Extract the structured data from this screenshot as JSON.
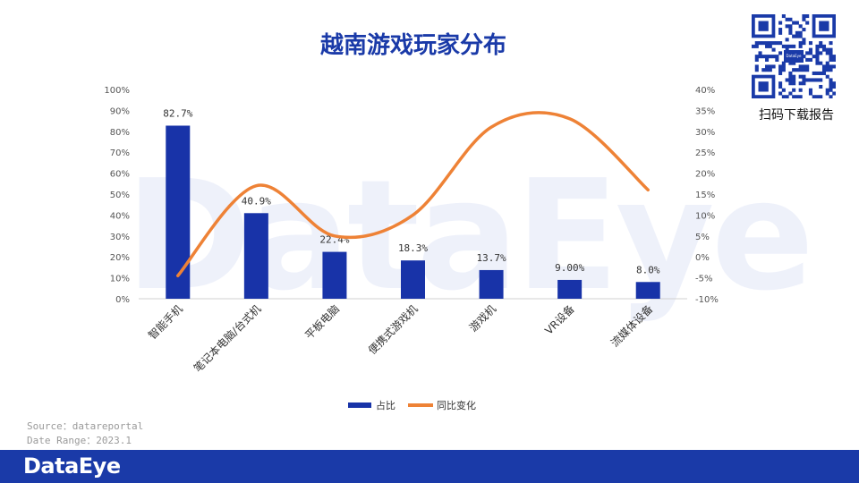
{
  "title": "越南游戏玩家分布",
  "watermark": "DataEye",
  "qr": {
    "caption": "扫码下载报告",
    "logo_text": "DataEye"
  },
  "source": {
    "line1": "Source：datareportal",
    "line2": "Date Range：2023.1"
  },
  "footer": {
    "logo": "DataEye"
  },
  "colors": {
    "bar": "#1833a8",
    "line": "#ee8236",
    "title": "#1a3aa8",
    "footer": "#1a3aa8"
  },
  "chart_data": {
    "type": "bar",
    "categories": [
      "智能手机",
      "笔记本电脑/台式机",
      "平板电脑",
      "便携式游戏机",
      "游戏机",
      "VR设备",
      "流媒体设备"
    ],
    "series": [
      {
        "name": "占比",
        "type": "bar",
        "axis": "left",
        "values": [
          82.7,
          40.9,
          22.4,
          18.3,
          13.7,
          9.0,
          8.0
        ],
        "labels": [
          "82.7%",
          "40.9%",
          "22.4%",
          "18.3%",
          "13.7%",
          "9.00%",
          "8.0%"
        ]
      },
      {
        "name": "同比变化",
        "type": "line",
        "axis": "right",
        "smooth": true,
        "values": [
          -4.5,
          17,
          5,
          10,
          31,
          33,
          16
        ]
      }
    ],
    "y_left": {
      "min": 0,
      "max": 100,
      "step": 10,
      "format": "percent",
      "ticks": [
        "0%",
        "10%",
        "20%",
        "30%",
        "40%",
        "50%",
        "60%",
        "70%",
        "80%",
        "90%",
        "100%"
      ]
    },
    "y_right": {
      "min": -10,
      "max": 40,
      "step": 5,
      "format": "percent",
      "ticks": [
        "-10%",
        "-5%",
        "0%",
        "5%",
        "10%",
        "15%",
        "20%",
        "25%",
        "30%",
        "35%",
        "40%"
      ]
    },
    "legend": {
      "position": "bottom"
    },
    "grid": false
  }
}
